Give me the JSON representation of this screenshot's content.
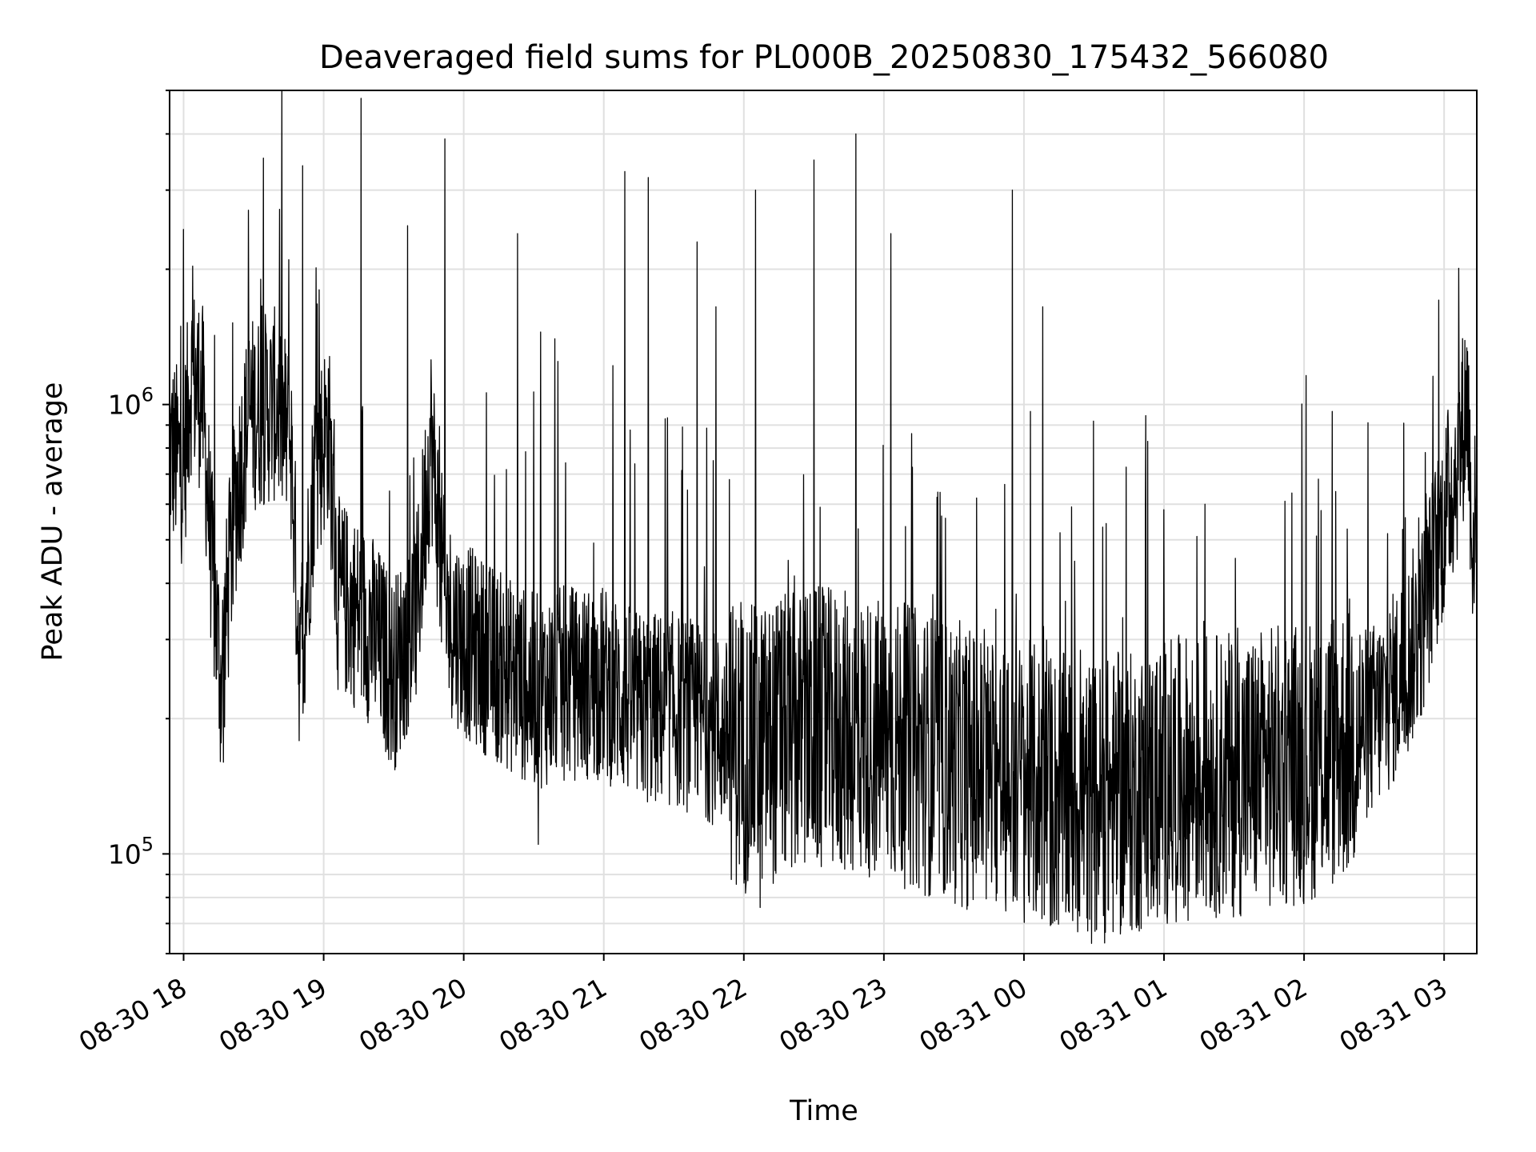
{
  "chart_data": {
    "type": "line",
    "title": "Deaveraged field sums for PL000B_20250830_175432_566080",
    "xlabel": "Time",
    "ylabel": "Peak ADU - average",
    "yscale": "log",
    "ylim": [
      60000,
      5000000
    ],
    "xlim": [
      "2025-08-30 17:54",
      "2025-08-31 03:14"
    ],
    "x_ticks": [
      "08-30 18",
      "08-30 19",
      "08-30 20",
      "08-30 21",
      "08-30 22",
      "08-30 23",
      "08-31 00",
      "08-31 01",
      "08-31 02",
      "08-31 03"
    ],
    "y_ticks": [
      {
        "value": 100000,
        "base": "10",
        "exp": "5"
      },
      {
        "value": 1000000,
        "base": "10",
        "exp": "6"
      }
    ],
    "grid": true,
    "line_color": "#000000",
    "series": [
      {
        "anchors_time_values": [
          [
            "2025-08-30 17:54",
            800000
          ],
          [
            "2025-08-30 18:00",
            720000
          ],
          [
            "2025-08-30 18:03",
            1150000
          ],
          [
            "2025-08-30 18:08",
            1050000
          ],
          [
            "2025-08-30 18:12",
            450000
          ],
          [
            "2025-08-30 18:16",
            240000
          ],
          [
            "2025-08-30 18:22",
            600000
          ],
          [
            "2025-08-30 18:28",
            950000
          ],
          [
            "2025-08-30 18:40",
            1000000
          ],
          [
            "2025-08-30 18:46",
            800000
          ],
          [
            "2025-08-30 18:50",
            250000
          ],
          [
            "2025-08-30 18:56",
            700000
          ],
          [
            "2025-08-30 19:02",
            900000
          ],
          [
            "2025-08-30 19:06",
            380000
          ],
          [
            "2025-08-30 19:20",
            320000
          ],
          [
            "2025-08-30 19:30",
            250000
          ],
          [
            "2025-08-30 19:40",
            350000
          ],
          [
            "2025-08-30 19:46",
            850000
          ],
          [
            "2025-08-30 19:52",
            350000
          ],
          [
            "2025-08-30 20:00",
            300000
          ],
          [
            "2025-08-30 20:15",
            260000
          ],
          [
            "2025-08-30 20:30",
            230000
          ],
          [
            "2025-08-30 20:45",
            240000
          ],
          [
            "2025-08-30 21:00",
            240000
          ],
          [
            "2025-08-30 21:15",
            210000
          ],
          [
            "2025-08-30 21:30",
            210000
          ],
          [
            "2025-08-30 21:45",
            195000
          ],
          [
            "2025-08-30 22:00",
            170000
          ],
          [
            "2025-08-30 22:15",
            180000
          ],
          [
            "2025-08-30 22:30",
            190000
          ],
          [
            "2025-08-30 22:45",
            185000
          ],
          [
            "2025-08-30 23:00",
            180000
          ],
          [
            "2025-08-30 23:15",
            170000
          ],
          [
            "2025-08-30 23:30",
            160000
          ],
          [
            "2025-08-30 23:45",
            150000
          ],
          [
            "2025-08-31 00:00",
            145000
          ],
          [
            "2025-08-31 00:15",
            135000
          ],
          [
            "2025-08-31 00:30",
            130000
          ],
          [
            "2025-08-31 00:45",
            135000
          ],
          [
            "2025-08-31 01:00",
            145000
          ],
          [
            "2025-08-31 01:15",
            150000
          ],
          [
            "2025-08-31 01:30",
            150000
          ],
          [
            "2025-08-31 01:45",
            155000
          ],
          [
            "2025-08-31 02:00",
            160000
          ],
          [
            "2025-08-31 02:15",
            175000
          ],
          [
            "2025-08-31 02:30",
            200000
          ],
          [
            "2025-08-31 02:40",
            240000
          ],
          [
            "2025-08-31 02:50",
            320000
          ],
          [
            "2025-08-31 02:58",
            500000
          ],
          [
            "2025-08-31 03:06",
            750000
          ],
          [
            "2025-08-31 03:10",
            1050000
          ],
          [
            "2025-08-31 03:12",
            520000
          ],
          [
            "2025-08-31 03:14",
            540000
          ]
        ],
        "spikes_time_values": [
          [
            "2025-08-30 18:33",
            1900000
          ],
          [
            "2025-08-30 18:45",
            2100000
          ],
          [
            "2025-08-30 18:51",
            3400000
          ],
          [
            "2025-08-30 18:58",
            1800000
          ],
          [
            "2025-08-30 19:16",
            4800000
          ],
          [
            "2025-08-30 19:36",
            2500000
          ],
          [
            "2025-08-30 19:52",
            3900000
          ],
          [
            "2025-08-30 20:23",
            2400000
          ],
          [
            "2025-08-30 20:33",
            1450000
          ],
          [
            "2025-08-30 20:39",
            1400000
          ],
          [
            "2025-08-30 21:09",
            3300000
          ],
          [
            "2025-08-30 21:19",
            3200000
          ],
          [
            "2025-08-30 21:40",
            2300000
          ],
          [
            "2025-08-30 21:48",
            1650000
          ],
          [
            "2025-08-30 22:05",
            3000000
          ],
          [
            "2025-08-30 22:30",
            3500000
          ],
          [
            "2025-08-30 22:48",
            4000000
          ],
          [
            "2025-08-30 23:03",
            2400000
          ],
          [
            "2025-08-30 23:55",
            3000000
          ],
          [
            "2025-08-31 00:08",
            1650000
          ]
        ],
        "dips_time_values": [
          [
            "2025-08-30 18:17",
            160000
          ],
          [
            "2025-08-30 20:32",
            105000
          ],
          [
            "2025-08-30 22:07",
            76000
          ],
          [
            "2025-08-31 00:27",
            72000
          ]
        ]
      }
    ]
  }
}
